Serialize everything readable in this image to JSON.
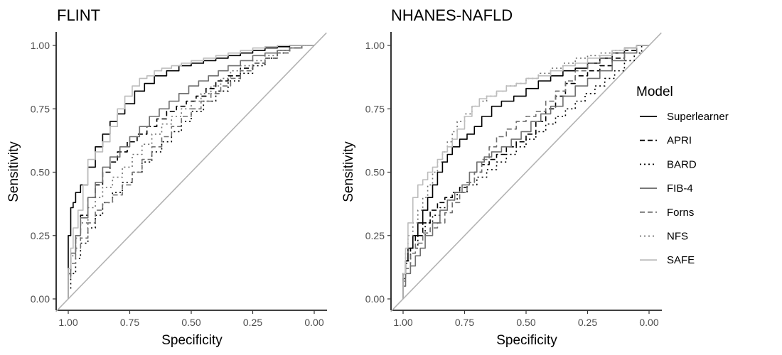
{
  "chart_data": {
    "type": "line",
    "x_axis": {
      "label": "Specificity",
      "reversed": true,
      "lim": [
        1.0,
        0.0
      ],
      "ticks": [
        "1.00",
        "0.75",
        "0.50",
        "0.25",
        "0.00"
      ]
    },
    "y_axis": {
      "label": "Sensitivity",
      "lim": [
        0.0,
        1.0
      ],
      "ticks": [
        "0.00",
        "0.25",
        "0.50",
        "0.75",
        "1.00"
      ]
    },
    "legend": {
      "title": "Model",
      "position": "right"
    },
    "grid": false,
    "series_styles": [
      {
        "name": "Superlearner",
        "color": "#000000",
        "dash": "solid"
      },
      {
        "name": "APRI",
        "color": "#000000",
        "dash": "dashed"
      },
      {
        "name": "BARD",
        "color": "#000000",
        "dash": "dotted"
      },
      {
        "name": "FIB-4",
        "color": "#707070",
        "dash": "solid"
      },
      {
        "name": "Forns",
        "color": "#707070",
        "dash": "dashed"
      },
      {
        "name": "NFS",
        "color": "#707070",
        "dash": "dotted"
      },
      {
        "name": "SAFE",
        "color": "#bdbdbd",
        "dash": "solid"
      }
    ],
    "panels": [
      {
        "title": "FLINT",
        "series": [
          {
            "name": "Superlearner",
            "x": [
              1.0,
              1.0,
              0.99,
              0.98,
              0.97,
              0.95,
              0.92,
              0.89,
              0.86,
              0.83,
              0.8,
              0.77,
              0.73,
              0.69,
              0.65,
              0.6,
              0.55,
              0.5,
              0.45,
              0.4,
              0.35,
              0.3,
              0.25,
              0.2,
              0.15,
              0.1,
              0.05,
              0.0
            ],
            "y": [
              0.0,
              0.12,
              0.25,
              0.36,
              0.38,
              0.42,
              0.45,
              0.52,
              0.6,
              0.65,
              0.7,
              0.73,
              0.77,
              0.82,
              0.85,
              0.88,
              0.9,
              0.92,
              0.93,
              0.94,
              0.95,
              0.96,
              0.97,
              0.98,
              0.99,
              0.995,
              1.0,
              1.0
            ]
          },
          {
            "name": "APRI",
            "x": [
              1.0,
              0.99,
              0.97,
              0.95,
              0.92,
              0.89,
              0.86,
              0.83,
              0.8,
              0.76,
              0.72,
              0.68,
              0.64,
              0.6,
              0.56,
              0.52,
              0.48,
              0.44,
              0.4,
              0.35,
              0.3,
              0.25,
              0.2,
              0.15,
              0.1,
              0.05,
              0.0
            ],
            "y": [
              0.0,
              0.1,
              0.18,
              0.25,
              0.33,
              0.4,
              0.45,
              0.5,
              0.54,
              0.58,
              0.62,
              0.65,
              0.68,
              0.71,
              0.74,
              0.76,
              0.78,
              0.8,
              0.83,
              0.86,
              0.88,
              0.91,
              0.93,
              0.95,
              0.97,
              0.99,
              1.0
            ]
          },
          {
            "name": "BARD",
            "x": [
              1.0,
              0.99,
              0.97,
              0.95,
              0.92,
              0.89,
              0.86,
              0.82,
              0.78,
              0.74,
              0.7,
              0.66,
              0.62,
              0.58,
              0.54,
              0.5,
              0.45,
              0.4,
              0.35,
              0.3,
              0.25,
              0.2,
              0.15,
              0.1,
              0.05,
              0.0
            ],
            "y": [
              0.0,
              0.04,
              0.1,
              0.16,
              0.22,
              0.28,
              0.33,
              0.38,
              0.42,
              0.46,
              0.5,
              0.54,
              0.58,
              0.62,
              0.66,
              0.7,
              0.74,
              0.78,
              0.82,
              0.86,
              0.89,
              0.92,
              0.95,
              0.97,
              0.99,
              1.0
            ]
          },
          {
            "name": "FIB-4",
            "x": [
              1.0,
              0.99,
              0.97,
              0.95,
              0.92,
              0.89,
              0.86,
              0.83,
              0.79,
              0.75,
              0.71,
              0.67,
              0.63,
              0.59,
              0.55,
              0.51,
              0.47,
              0.43,
              0.39,
              0.35,
              0.3,
              0.25,
              0.2,
              0.15,
              0.1,
              0.05,
              0.0
            ],
            "y": [
              0.0,
              0.1,
              0.18,
              0.25,
              0.32,
              0.4,
              0.46,
              0.52,
              0.56,
              0.6,
              0.64,
              0.68,
              0.72,
              0.75,
              0.78,
              0.81,
              0.84,
              0.86,
              0.88,
              0.9,
              0.92,
              0.94,
              0.96,
              0.97,
              0.98,
              0.99,
              1.0
            ]
          },
          {
            "name": "Forns",
            "x": [
              1.0,
              0.99,
              0.97,
              0.95,
              0.92,
              0.89,
              0.86,
              0.82,
              0.78,
              0.74,
              0.7,
              0.66,
              0.62,
              0.58,
              0.54,
              0.5,
              0.46,
              0.42,
              0.38,
              0.34,
              0.3,
              0.25,
              0.2,
              0.15,
              0.1,
              0.05,
              0.0
            ],
            "y": [
              0.0,
              0.08,
              0.14,
              0.2,
              0.24,
              0.3,
              0.35,
              0.38,
              0.41,
              0.45,
              0.5,
              0.55,
              0.6,
              0.64,
              0.68,
              0.72,
              0.75,
              0.78,
              0.81,
              0.84,
              0.87,
              0.9,
              0.93,
              0.95,
              0.97,
              0.99,
              1.0
            ]
          },
          {
            "name": "NFS",
            "x": [
              1.0,
              0.99,
              0.97,
              0.95,
              0.92,
              0.89,
              0.86,
              0.82,
              0.78,
              0.74,
              0.7,
              0.66,
              0.62,
              0.58,
              0.54,
              0.5,
              0.46,
              0.42,
              0.38,
              0.34,
              0.3,
              0.25,
              0.2,
              0.15,
              0.1,
              0.05,
              0.0
            ],
            "y": [
              0.0,
              0.1,
              0.17,
              0.24,
              0.3,
              0.36,
              0.4,
              0.44,
              0.48,
              0.52,
              0.57,
              0.61,
              0.65,
              0.69,
              0.72,
              0.75,
              0.78,
              0.81,
              0.84,
              0.87,
              0.9,
              0.92,
              0.94,
              0.96,
              0.98,
              0.99,
              1.0
            ]
          },
          {
            "name": "SAFE",
            "x": [
              1.0,
              0.99,
              0.98,
              0.96,
              0.94,
              0.92,
              0.89,
              0.86,
              0.83,
              0.8,
              0.77,
              0.74,
              0.71,
              0.68,
              0.65,
              0.62,
              0.58,
              0.54,
              0.5,
              0.45,
              0.4,
              0.35,
              0.3,
              0.25,
              0.2,
              0.15,
              0.1,
              0.05,
              0.0
            ],
            "y": [
              0.0,
              0.12,
              0.2,
              0.28,
              0.35,
              0.45,
              0.55,
              0.58,
              0.62,
              0.68,
              0.75,
              0.8,
              0.84,
              0.87,
              0.88,
              0.9,
              0.91,
              0.92,
              0.93,
              0.94,
              0.95,
              0.96,
              0.97,
              0.98,
              0.99,
              0.995,
              1.0,
              1.0,
              1.0
            ]
          }
        ]
      },
      {
        "title": "NHANES-NAFLD",
        "series": [
          {
            "name": "Superlearner",
            "x": [
              1.0,
              0.99,
              0.98,
              0.96,
              0.94,
              0.92,
              0.9,
              0.88,
              0.86,
              0.84,
              0.82,
              0.8,
              0.77,
              0.74,
              0.71,
              0.68,
              0.64,
              0.6,
              0.55,
              0.5,
              0.45,
              0.4,
              0.35,
              0.3,
              0.25,
              0.2,
              0.15,
              0.1,
              0.05,
              0.0
            ],
            "y": [
              0.0,
              0.1,
              0.15,
              0.2,
              0.25,
              0.3,
              0.35,
              0.4,
              0.45,
              0.5,
              0.54,
              0.57,
              0.6,
              0.63,
              0.65,
              0.68,
              0.72,
              0.76,
              0.78,
              0.8,
              0.83,
              0.86,
              0.88,
              0.9,
              0.91,
              0.93,
              0.95,
              0.97,
              0.99,
              1.0
            ]
          },
          {
            "name": "APRI",
            "x": [
              1.0,
              0.99,
              0.97,
              0.95,
              0.92,
              0.89,
              0.86,
              0.83,
              0.8,
              0.77,
              0.74,
              0.71,
              0.68,
              0.65,
              0.62,
              0.58,
              0.54,
              0.5,
              0.46,
              0.42,
              0.38,
              0.34,
              0.3,
              0.25,
              0.2,
              0.15,
              0.1,
              0.05,
              0.0
            ],
            "y": [
              0.0,
              0.1,
              0.15,
              0.2,
              0.25,
              0.3,
              0.35,
              0.38,
              0.4,
              0.42,
              0.44,
              0.46,
              0.5,
              0.53,
              0.55,
              0.57,
              0.6,
              0.62,
              0.65,
              0.7,
              0.75,
              0.8,
              0.85,
              0.88,
              0.9,
              0.92,
              0.95,
              0.98,
              1.0
            ]
          },
          {
            "name": "BARD",
            "x": [
              1.0,
              0.99,
              0.97,
              0.94,
              0.91,
              0.88,
              0.85,
              0.82,
              0.78,
              0.74,
              0.7,
              0.66,
              0.62,
              0.58,
              0.54,
              0.5,
              0.46,
              0.42,
              0.38,
              0.34,
              0.3,
              0.26,
              0.22,
              0.18,
              0.14,
              0.1,
              0.06,
              0.03,
              0.0
            ],
            "y": [
              0.0,
              0.08,
              0.14,
              0.2,
              0.25,
              0.3,
              0.33,
              0.36,
              0.39,
              0.42,
              0.45,
              0.48,
              0.51,
              0.54,
              0.57,
              0.6,
              0.63,
              0.66,
              0.69,
              0.72,
              0.75,
              0.78,
              0.81,
              0.84,
              0.87,
              0.9,
              0.94,
              0.97,
              1.0
            ]
          },
          {
            "name": "FIB-4",
            "x": [
              1.0,
              0.99,
              0.97,
              0.95,
              0.93,
              0.91,
              0.88,
              0.85,
              0.82,
              0.79,
              0.76,
              0.73,
              0.7,
              0.67,
              0.64,
              0.6,
              0.56,
              0.52,
              0.48,
              0.44,
              0.4,
              0.35,
              0.3,
              0.25,
              0.2,
              0.15,
              0.1,
              0.05,
              0.0
            ],
            "y": [
              0.0,
              0.05,
              0.1,
              0.13,
              0.17,
              0.2,
              0.25,
              0.3,
              0.35,
              0.39,
              0.42,
              0.45,
              0.5,
              0.54,
              0.56,
              0.58,
              0.6,
              0.63,
              0.66,
              0.7,
              0.73,
              0.76,
              0.8,
              0.84,
              0.87,
              0.9,
              0.94,
              0.97,
              1.0
            ]
          },
          {
            "name": "Forns",
            "x": [
              1.0,
              0.99,
              0.97,
              0.95,
              0.92,
              0.89,
              0.86,
              0.83,
              0.8,
              0.77,
              0.74,
              0.71,
              0.68,
              0.65,
              0.62,
              0.58,
              0.54,
              0.5,
              0.46,
              0.42,
              0.38,
              0.34,
              0.3,
              0.25,
              0.2,
              0.15,
              0.1,
              0.05,
              0.0
            ],
            "y": [
              0.0,
              0.07,
              0.12,
              0.18,
              0.22,
              0.26,
              0.28,
              0.3,
              0.34,
              0.38,
              0.42,
              0.46,
              0.5,
              0.55,
              0.6,
              0.64,
              0.67,
              0.7,
              0.72,
              0.74,
              0.78,
              0.82,
              0.86,
              0.9,
              0.93,
              0.95,
              0.97,
              0.99,
              1.0
            ]
          },
          {
            "name": "NFS",
            "x": [
              1.0,
              0.99,
              0.98,
              0.96,
              0.94,
              0.92,
              0.9,
              0.88,
              0.86,
              0.84,
              0.82,
              0.8,
              0.78,
              0.75,
              0.72,
              0.69,
              0.66,
              0.62,
              0.58,
              0.54,
              0.5,
              0.45,
              0.4,
              0.35,
              0.3,
              0.25,
              0.2,
              0.15,
              0.1,
              0.05,
              0.0
            ],
            "y": [
              0.0,
              0.1,
              0.18,
              0.25,
              0.3,
              0.35,
              0.4,
              0.45,
              0.5,
              0.54,
              0.58,
              0.62,
              0.66,
              0.7,
              0.73,
              0.76,
              0.78,
              0.8,
              0.82,
              0.84,
              0.85,
              0.87,
              0.89,
              0.91,
              0.93,
              0.95,
              0.96,
              0.97,
              0.98,
              0.99,
              1.0
            ]
          },
          {
            "name": "SAFE",
            "x": [
              1.0,
              0.99,
              0.98,
              0.96,
              0.94,
              0.92,
              0.9,
              0.88,
              0.86,
              0.84,
              0.82,
              0.8,
              0.78,
              0.75,
              0.72,
              0.69,
              0.66,
              0.62,
              0.58,
              0.54,
              0.5,
              0.45,
              0.4,
              0.35,
              0.3,
              0.25,
              0.2,
              0.15,
              0.1,
              0.05,
              0.0
            ],
            "y": [
              0.0,
              0.1,
              0.2,
              0.3,
              0.4,
              0.45,
              0.47,
              0.5,
              0.52,
              0.55,
              0.58,
              0.6,
              0.63,
              0.67,
              0.72,
              0.76,
              0.79,
              0.8,
              0.82,
              0.84,
              0.85,
              0.87,
              0.88,
              0.9,
              0.92,
              0.93,
              0.95,
              0.96,
              0.98,
              0.99,
              1.0
            ]
          }
        ]
      }
    ]
  }
}
